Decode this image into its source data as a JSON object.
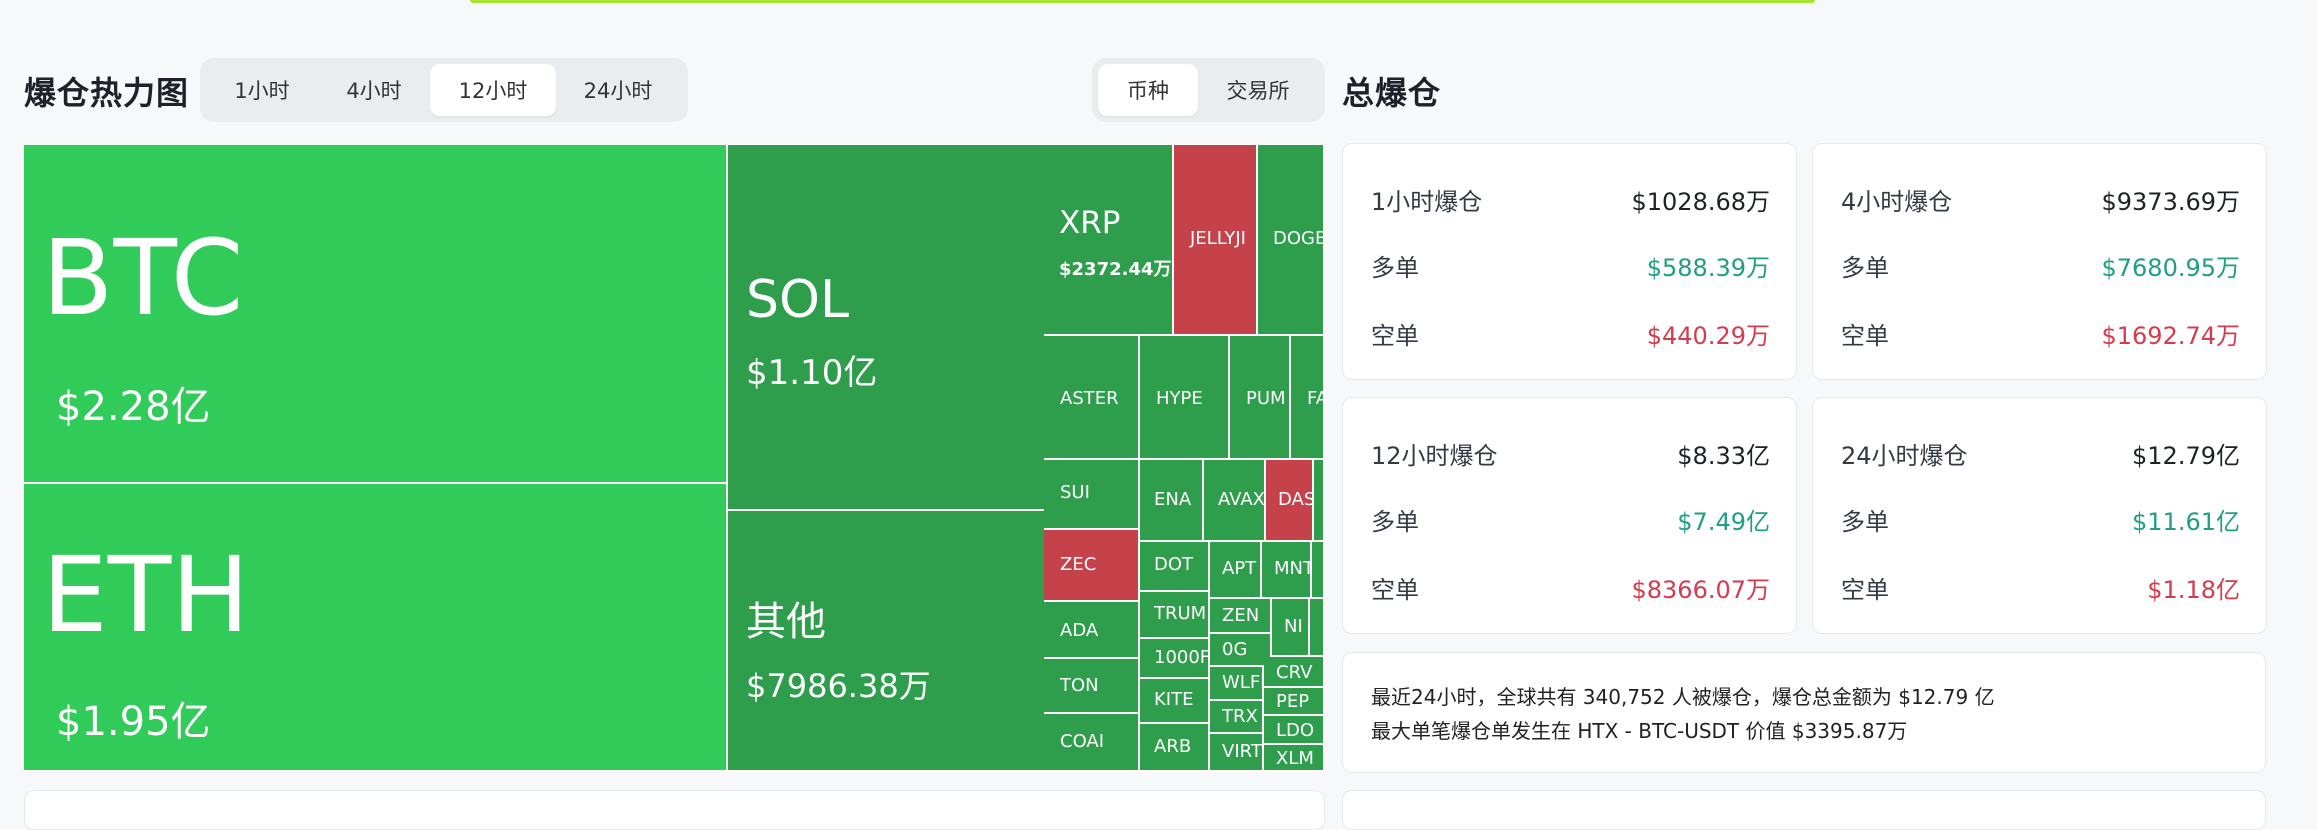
{
  "heatmap": {
    "title": "爆仓热力图",
    "time_tabs": [
      "1小时",
      "4小时",
      "12小时",
      "24小时"
    ],
    "active_time_tab": "12小时",
    "view_tabs": [
      "币种",
      "交易所"
    ],
    "active_view_tab": "币种",
    "colors": {
      "long_heavy_bright": "#31cb5a",
      "long_heavy_dark": "#2e9e4c",
      "short_heavy": "#c5424a"
    },
    "tiles": {
      "btc": {
        "symbol": "BTC",
        "value": "$2.28亿"
      },
      "eth": {
        "symbol": "ETH",
        "value": "$1.95亿"
      },
      "sol": {
        "symbol": "SOL",
        "value": "$1.10亿"
      },
      "other": {
        "symbol": "其他",
        "value": "$7986.38万"
      },
      "xrp": {
        "symbol": "XRP",
        "value": "$2372.44万"
      },
      "jelly": {
        "symbol": "JELLYJI"
      },
      "doge": {
        "symbol": "DOGE"
      },
      "aster": {
        "symbol": "ASTER"
      },
      "hype": {
        "symbol": "HYPE"
      },
      "pump": {
        "symbol": "PUM"
      },
      "fa": {
        "symbol": "FA"
      },
      "sui": {
        "symbol": "SUI"
      },
      "ena": {
        "symbol": "ENA"
      },
      "avax": {
        "symbol": "AVAX"
      },
      "dash": {
        "symbol": "DAS"
      },
      "zec": {
        "symbol": "ZEC"
      },
      "dot": {
        "symbol": "DOT"
      },
      "apt": {
        "symbol": "APT"
      },
      "mnt": {
        "symbol": "MNT"
      },
      "ada": {
        "symbol": "ADA"
      },
      "trump": {
        "symbol": "TRUM"
      },
      "zen": {
        "symbol": "ZEN"
      },
      "ni": {
        "symbol": "NI"
      },
      "thousand": {
        "symbol": "1000F"
      },
      "og": {
        "symbol": "0G"
      },
      "crv": {
        "symbol": "CRV"
      },
      "ton": {
        "symbol": "TON"
      },
      "kite": {
        "symbol": "KITE"
      },
      "wlfi": {
        "symbol": "WLFI"
      },
      "pepe": {
        "symbol": "PEP"
      },
      "trx": {
        "symbol": "TRX"
      },
      "ldo": {
        "symbol": "LDO"
      },
      "coai": {
        "symbol": "COAI"
      },
      "arb": {
        "symbol": "ARB"
      },
      "virt": {
        "symbol": "VIRT"
      },
      "xlm": {
        "symbol": "XLM"
      }
    }
  },
  "total": {
    "title": "总爆仓",
    "long_label": "多单",
    "short_label": "空单",
    "cards": [
      {
        "label": "1小时爆仓",
        "total": "$1028.68万",
        "long": "$588.39万",
        "short": "$440.29万"
      },
      {
        "label": "4小时爆仓",
        "total": "$9373.69万",
        "long": "$7680.95万",
        "short": "$1692.74万"
      },
      {
        "label": "12小时爆仓",
        "total": "$8.33亿",
        "long": "$7.49亿",
        "short": "$8366.07万"
      },
      {
        "label": "24小时爆仓",
        "total": "$12.79亿",
        "long": "$11.61亿",
        "short": "$1.18亿"
      }
    ],
    "summary_line1": "最近24小时，全球共有 340,752 人被爆仓，爆仓总金额为 $12.79 亿",
    "summary_line2": "最大单笔爆仓单发生在 HTX - BTC-USDT 价值 $3395.87万",
    "colors": {
      "long": "#1f9e85",
      "short": "#d53b4c"
    }
  }
}
